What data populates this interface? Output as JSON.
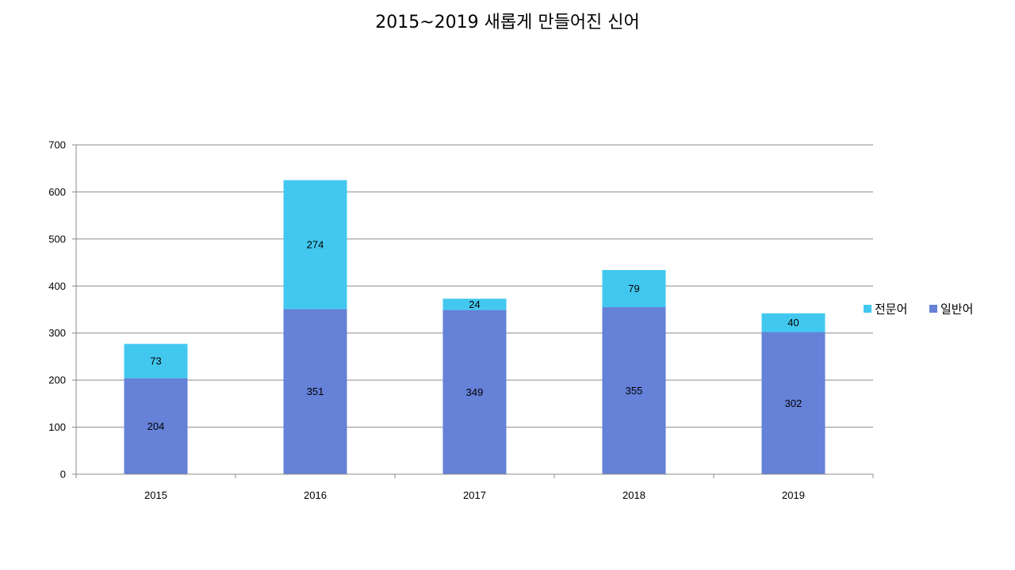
{
  "chart_data": {
    "type": "bar",
    "stacked": true,
    "title": "2015~2019 새롭게 만들어진 신어",
    "xlabel": "",
    "ylabel": "",
    "categories": [
      "2015",
      "2016",
      "2017",
      "2018",
      "2019"
    ],
    "series": [
      {
        "name": "일반어",
        "color": "#6581D8",
        "values": [
          204,
          351,
          349,
          355,
          302
        ]
      },
      {
        "name": "전문어",
        "color": "#42C8EF",
        "values": [
          73,
          274,
          24,
          79,
          40
        ]
      }
    ],
    "ylim": [
      0,
      700
    ],
    "yticks": [
      0,
      100,
      200,
      300,
      400,
      500,
      600,
      700
    ],
    "grid": true,
    "legend_position": "right",
    "legend_order": [
      "전문어",
      "일반어"
    ]
  }
}
